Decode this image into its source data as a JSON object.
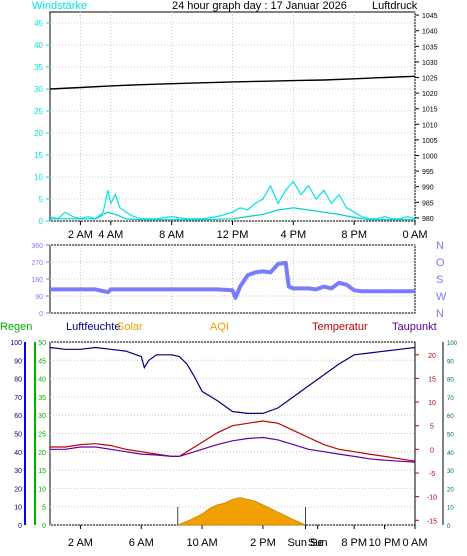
{
  "title": "24 hour graph day : 17 Januar 2026",
  "colors": {
    "wind": "#00e5e5",
    "gust": "#00cfcf",
    "pressure": "#000000",
    "direction": "#7b7bff",
    "humidity": "#000080",
    "temperature": "#c00000",
    "dewpoint": "#6000a0",
    "solar": "#f0a000",
    "rain": "#00b000",
    "frame": "#000000"
  },
  "chart_data": [
    {
      "type": "line",
      "name": "wind-pressure-chart",
      "left_label": "Windstärke",
      "right_label": "Luftdruck",
      "x_ticks": [
        "2 AM",
        "4 AM",
        "8 AM",
        "12 PM",
        "4 PM",
        "8 PM",
        "0 AM"
      ],
      "x_tick_hours": [
        2,
        4,
        8,
        12,
        16,
        20,
        24
      ],
      "xlim_hours": [
        0,
        24
      ],
      "y_left_ticks": [
        "0",
        "5",
        "10",
        "15",
        "20",
        "25",
        "30",
        "35",
        "40",
        "45"
      ],
      "ylim_left": [
        0,
        47.5
      ],
      "y_right_ticks": [
        "980",
        "985",
        "990",
        "995",
        "1000",
        "1005",
        "1010",
        "1015",
        "1020",
        "1025",
        "1030",
        "1035",
        "1040",
        "1045"
      ],
      "ylim_right": [
        979,
        1046
      ],
      "series": [
        {
          "key": "pressure",
          "axis": "right",
          "x": [
            0,
            2,
            4,
            6,
            8,
            10,
            12,
            14,
            16,
            18,
            20,
            22,
            24
          ],
          "y": [
            1021.3,
            1021.8,
            1022.3,
            1022.7,
            1023.0,
            1023.3,
            1023.6,
            1023.8,
            1024.0,
            1024.2,
            1024.6,
            1025.0,
            1025.4
          ]
        },
        {
          "key": "wind",
          "axis": "left",
          "x": [
            0,
            0.5,
            1,
            1.5,
            2,
            2.5,
            3,
            3.5,
            3.8,
            4,
            4.3,
            4.6,
            5,
            5.5,
            6,
            7,
            8,
            9,
            10,
            11,
            12,
            12.5,
            13,
            13.5,
            14,
            14.5,
            15,
            15.5,
            16,
            16.5,
            17,
            17.5,
            18,
            18.5,
            19,
            19.5,
            20,
            20.5,
            21,
            21.5,
            22,
            22.5,
            23,
            23.5,
            24
          ],
          "y": [
            1,
            0.5,
            2,
            1,
            0.5,
            1,
            0.5,
            2,
            7,
            4,
            6,
            3,
            2,
            1,
            0.5,
            0.5,
            1,
            0.5,
            0.5,
            1,
            2,
            3,
            2.5,
            4,
            5,
            8,
            4,
            7,
            9,
            6,
            8,
            5,
            7,
            4,
            6,
            3,
            2,
            1,
            0.5,
            0.5,
            1,
            0.5,
            0.5,
            1,
            0.5
          ]
        },
        {
          "key": "gust",
          "axis": "left",
          "x": [
            0,
            1,
            2,
            3,
            3.8,
            4.3,
            5,
            6,
            8,
            10,
            12,
            13,
            14,
            15,
            16,
            17,
            18,
            19,
            20,
            21,
            22,
            23,
            24
          ],
          "y": [
            0.5,
            0.5,
            0.5,
            0.5,
            2,
            1.5,
            0.5,
            0.3,
            0.3,
            0.3,
            0.5,
            1,
            1.5,
            2.5,
            3,
            2.5,
            2,
            1.5,
            0.8,
            0.3,
            0.3,
            0.3,
            0.3
          ]
        }
      ]
    },
    {
      "type": "line",
      "name": "wind-direction-chart",
      "y_left_ticks": [
        "0",
        "90",
        "180",
        "270",
        "360"
      ],
      "ylim": [
        0,
        360
      ],
      "compass_labels": [
        "N",
        "W",
        "S",
        "O",
        "N"
      ],
      "series": [
        {
          "key": "direction",
          "x": [
            0,
            3,
            3.8,
            4,
            6,
            8,
            10,
            11,
            12,
            12.2,
            12.5,
            13,
            13.5,
            14,
            14.5,
            15,
            15.5,
            15.7,
            16,
            17,
            17.5,
            18,
            18.5,
            19,
            19.5,
            20,
            20.5,
            21,
            22,
            24
          ],
          "y": [
            125,
            125,
            110,
            125,
            125,
            125,
            125,
            125,
            120,
            80,
            140,
            200,
            215,
            220,
            215,
            260,
            265,
            140,
            130,
            130,
            125,
            140,
            130,
            160,
            150,
            120,
            115,
            115,
            115,
            115
          ]
        }
      ]
    },
    {
      "type": "line",
      "name": "weather-chart",
      "legend": [
        "Regen",
        "Luftfeuchte",
        "Solar",
        "AQI",
        "Temperatur",
        "Taupunkt"
      ],
      "x_ticks": [
        "2 AM",
        "6 AM",
        "10 AM",
        "2 PM",
        "Sun Se",
        "Sun",
        "8 PM",
        "10 PM",
        "0 AM"
      ],
      "x_tick_hours": [
        2,
        6,
        10,
        14,
        16.8,
        17.6,
        20,
        22,
        24
      ],
      "sun_markers_hours": [
        8.4,
        16.8
      ],
      "y_humidity_ticks": [
        "0",
        "10",
        "20",
        "30",
        "40",
        "50",
        "60",
        "70",
        "80",
        "90",
        "100"
      ],
      "ylim_humidity": [
        0,
        100
      ],
      "y_rain_ticks": [
        "0",
        "5",
        "10",
        "15",
        "20",
        "25",
        "30",
        "35",
        "40",
        "45",
        "50"
      ],
      "y_temp_ticks": [
        "-15",
        "-10",
        "-5",
        "0",
        "5",
        "10",
        "15",
        "20"
      ],
      "ylim_temp": [
        -16,
        22.7
      ],
      "y_solar_ticks": [
        "0",
        "10",
        "20",
        "30",
        "40",
        "50",
        "60",
        "70",
        "80",
        "90",
        "100"
      ],
      "series": [
        {
          "key": "humidity",
          "axis": "humidity",
          "x": [
            0,
            1,
            2,
            3,
            4,
            5,
            6,
            6.2,
            6.5,
            7,
            8,
            8.5,
            9,
            9.5,
            10,
            11,
            12,
            13,
            14,
            15,
            16,
            17,
            18,
            19,
            20,
            21,
            22,
            23,
            24
          ],
          "y": [
            97,
            96,
            96,
            97,
            96,
            95,
            92,
            86,
            90,
            93,
            93,
            92,
            88,
            81,
            73,
            68,
            62,
            61,
            61,
            64,
            70,
            76,
            82,
            88,
            93,
            94,
            95,
            96,
            97
          ]
        },
        {
          "key": "temperature",
          "axis": "temp",
          "x": [
            0,
            1,
            2,
            3,
            4,
            5,
            6,
            7,
            8,
            8.5,
            9,
            10,
            11,
            12,
            13,
            14,
            15,
            16,
            17,
            18,
            19,
            20,
            21,
            22,
            23,
            24
          ],
          "y": [
            0.5,
            0.5,
            1.0,
            1.2,
            0.8,
            0.0,
            -0.5,
            -1.0,
            -1.5,
            -1.5,
            -0.5,
            1.5,
            3.5,
            5.0,
            5.5,
            6.0,
            5.5,
            4.0,
            2.5,
            1.0,
            0.0,
            -0.5,
            -1.0,
            -1.5,
            -2.0,
            -2.5
          ]
        },
        {
          "key": "dewpoint",
          "axis": "temp",
          "x": [
            0,
            1,
            2,
            3,
            4,
            5,
            6,
            7,
            8,
            8.5,
            9,
            10,
            11,
            12,
            13,
            14,
            15,
            16,
            17,
            18,
            19,
            20,
            21,
            22,
            23,
            24
          ],
          "y": [
            0.0,
            0.0,
            0.5,
            0.5,
            0.0,
            -0.5,
            -1.0,
            -1.2,
            -1.5,
            -1.5,
            -1.0,
            0.0,
            1.0,
            1.8,
            2.3,
            2.5,
            2.0,
            1.0,
            0.0,
            -0.5,
            -1.0,
            -1.5,
            -2.0,
            -2.3,
            -2.5,
            -2.7
          ]
        },
        {
          "key": "solar",
          "axis": "humidity",
          "x": [
            8.4,
            9,
            9.5,
            10,
            10.5,
            11,
            11.5,
            12,
            12.5,
            13,
            13.5,
            14,
            14.5,
            15,
            15.5,
            16,
            16.8
          ],
          "y": [
            0,
            2,
            4,
            6,
            9,
            11,
            12,
            14,
            15,
            14,
            13,
            11,
            9,
            7,
            5,
            3,
            0
          ]
        }
      ]
    }
  ]
}
